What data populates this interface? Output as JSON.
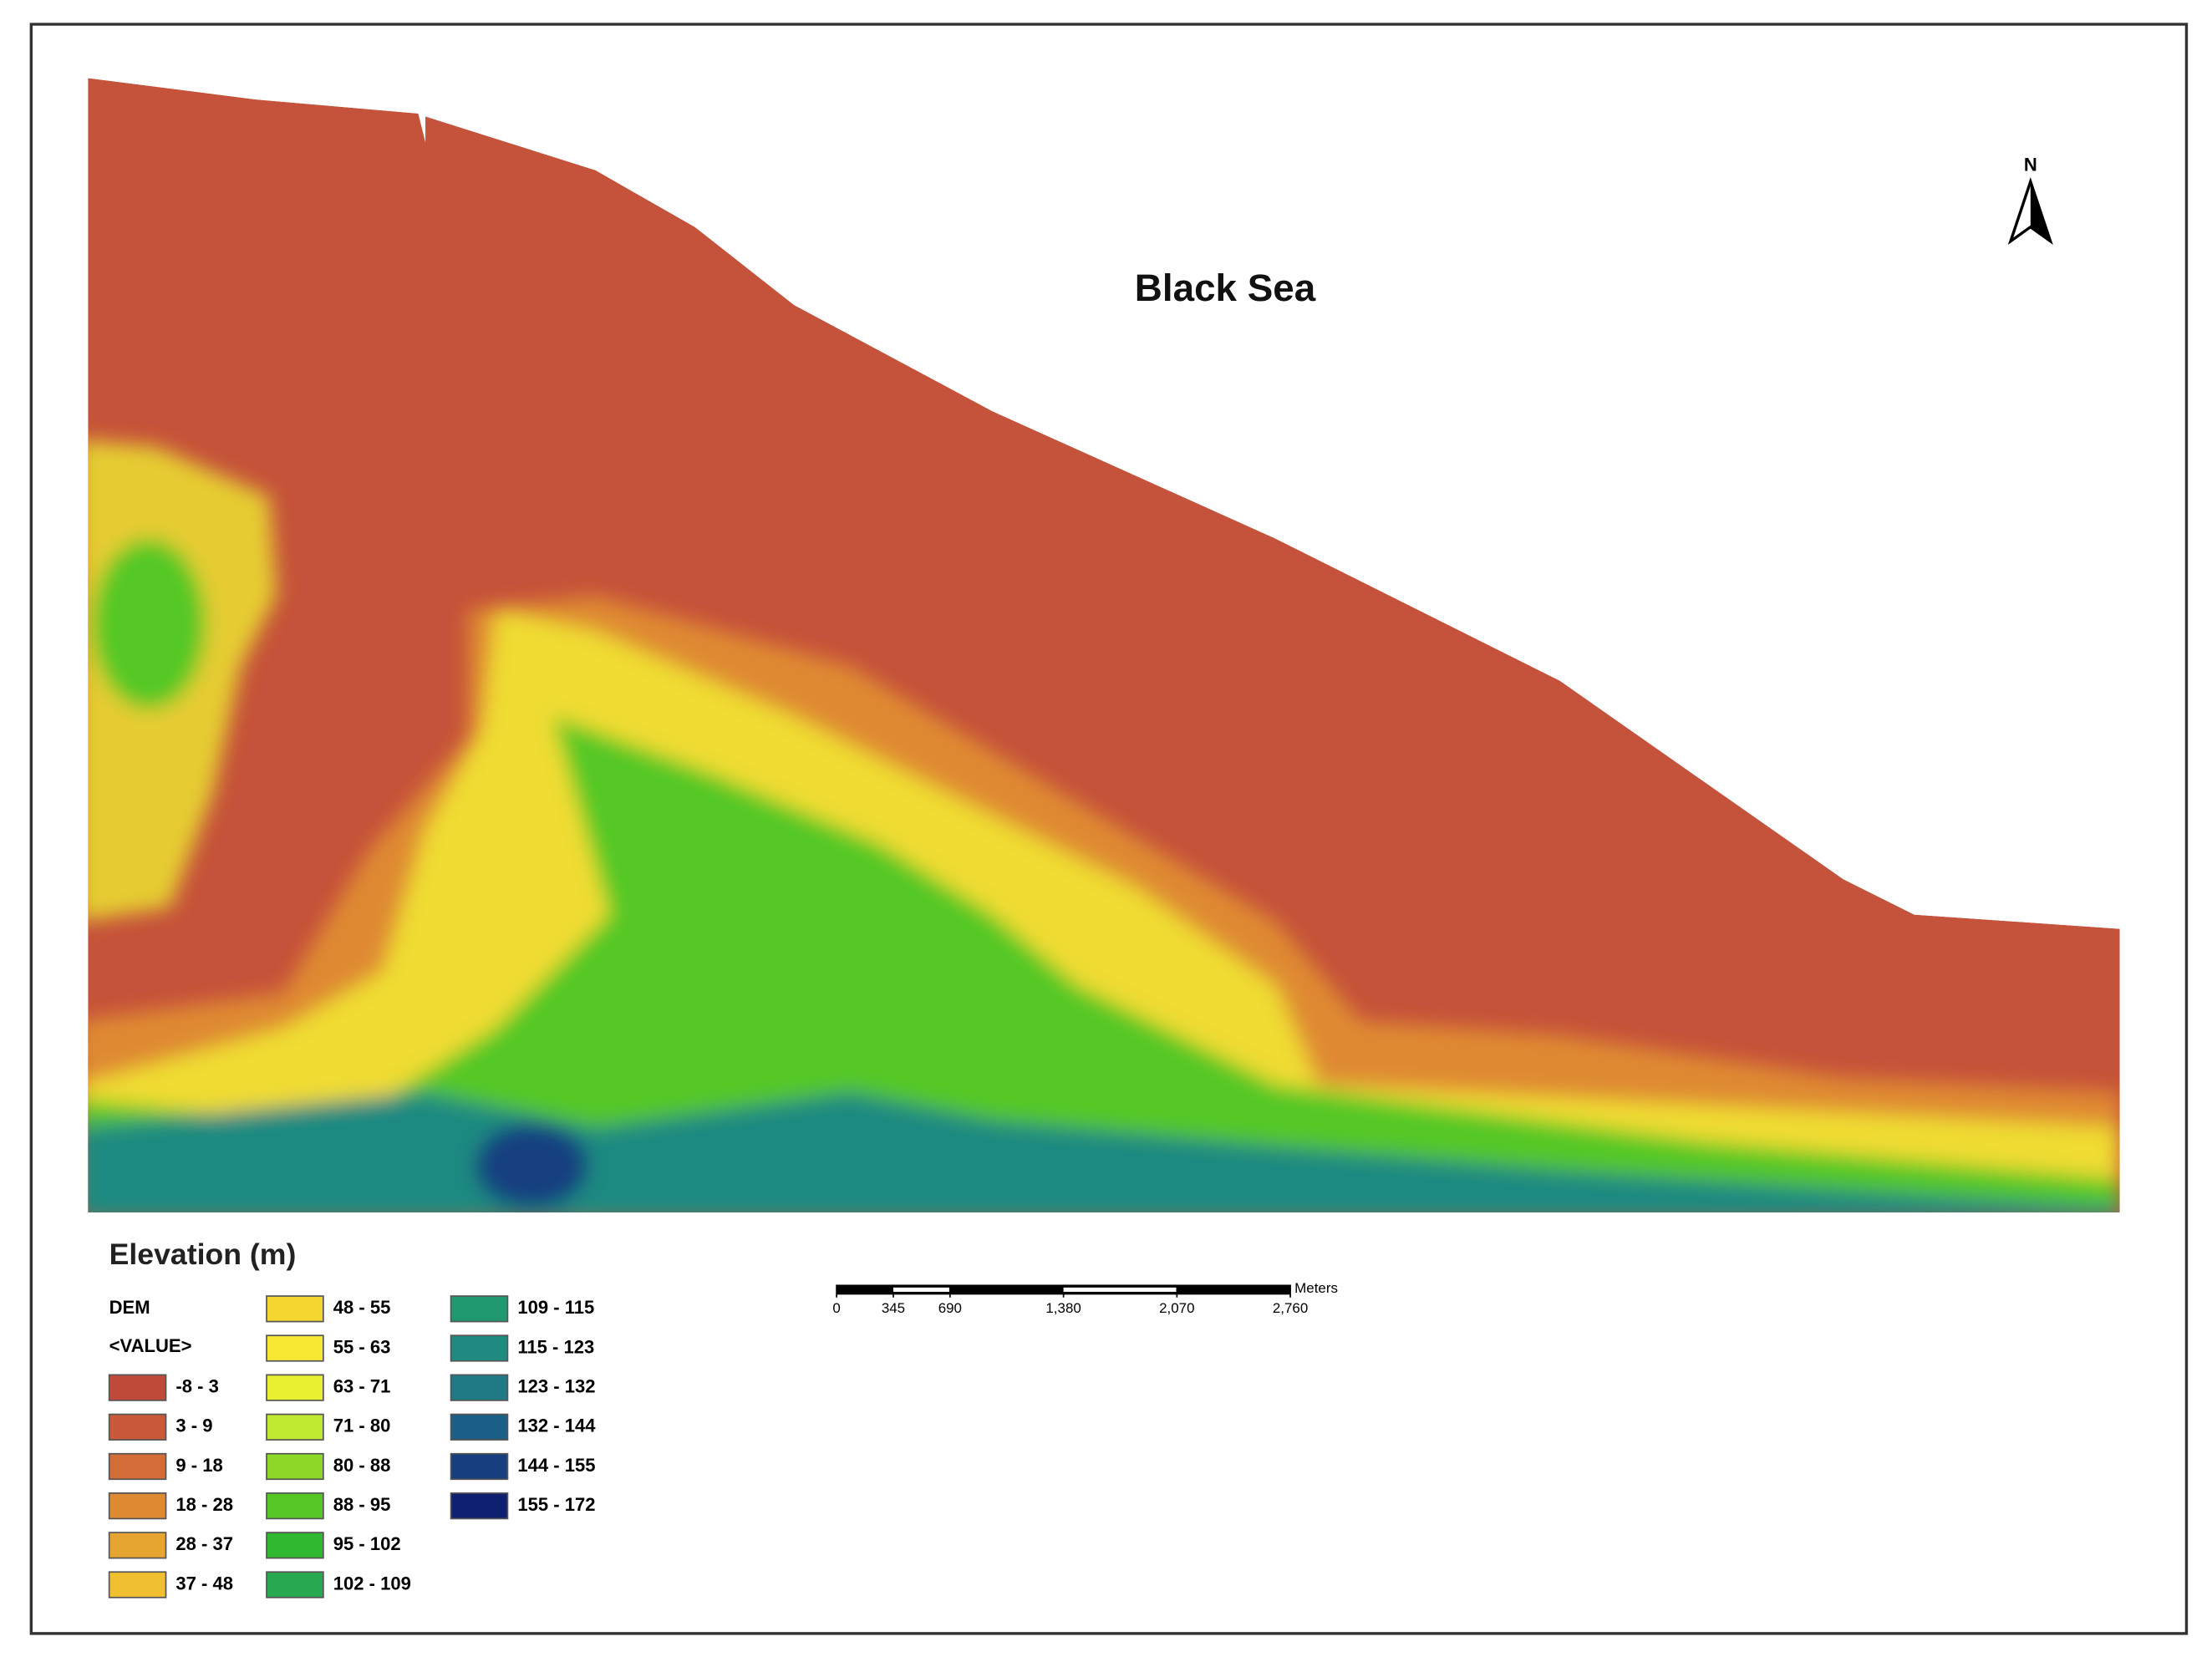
{
  "map": {
    "sea_label": "Black Sea",
    "north_label": "N",
    "legend": {
      "title": "Elevation (m)",
      "layer": "DEM",
      "field": "<VALUE>",
      "classes": [
        {
          "label": "-8 - 3",
          "color": "#c04a3a"
        },
        {
          "label": "3 - 9",
          "color": "#c85a3a"
        },
        {
          "label": "9 - 18",
          "color": "#d26d38"
        },
        {
          "label": "18 - 28",
          "color": "#dd8a33"
        },
        {
          "label": "28 - 37",
          "color": "#e6a530"
        },
        {
          "label": "37 - 48",
          "color": "#f0c030"
        },
        {
          "label": "48 - 55",
          "color": "#f5d530"
        },
        {
          "label": "55 - 63",
          "color": "#f8e833"
        },
        {
          "label": "63 - 71",
          "color": "#e8f030"
        },
        {
          "label": "71 - 80",
          "color": "#bfe830"
        },
        {
          "label": "80 - 88",
          "color": "#8ed82a"
        },
        {
          "label": "88 - 95",
          "color": "#55c825"
        },
        {
          "label": "95 - 102",
          "color": "#30b830"
        },
        {
          "label": "102 - 109",
          "color": "#28a850"
        },
        {
          "label": "109 - 115",
          "color": "#209870"
        },
        {
          "label": "115 - 123",
          "color": "#1f8a80"
        },
        {
          "label": "123 - 132",
          "color": "#1f7a85"
        },
        {
          "label": "132 - 144",
          "color": "#1a5f85"
        },
        {
          "label": "144 - 155",
          "color": "#163f80"
        },
        {
          "label": "155 - 172",
          "color": "#0f2070"
        }
      ]
    },
    "scale_bar": {
      "unit": "Meters",
      "ticks": [
        0,
        345,
        690,
        {
          "value": 1380,
          "label": "1,380"
        },
        {
          "value": 2070,
          "label": "2,070"
        },
        {
          "value": 2760,
          "label": "2,760"
        }
      ]
    }
  }
}
